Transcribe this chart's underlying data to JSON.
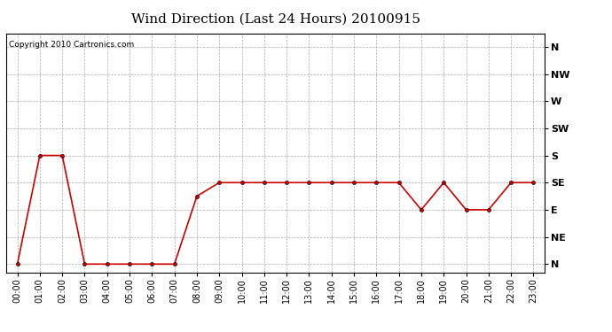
{
  "title": "Wind Direction (Last 24 Hours) 20100915",
  "copyright": "Copyright 2010 Cartronics.com",
  "x_labels": [
    "00:00",
    "01:00",
    "02:00",
    "03:00",
    "04:00",
    "05:00",
    "06:00",
    "07:00",
    "08:00",
    "09:00",
    "10:00",
    "11:00",
    "12:00",
    "13:00",
    "14:00",
    "15:00",
    "16:00",
    "17:00",
    "18:00",
    "19:00",
    "20:00",
    "21:00",
    "22:00",
    "23:00"
  ],
  "y_ticks": [
    0,
    1,
    2,
    3,
    4,
    5,
    6,
    7,
    8
  ],
  "y_labels": [
    "N",
    "NE",
    "E",
    "SE",
    "S",
    "SW",
    "W",
    "NW",
    "N"
  ],
  "data_values": [
    0,
    4,
    4,
    0,
    0,
    0,
    0,
    0,
    2.5,
    3,
    3,
    3,
    3,
    3,
    3,
    3,
    3,
    3,
    2,
    3,
    2,
    2,
    3,
    3
  ],
  "line_color": "#cc0000",
  "marker_size": 3,
  "background_color": "#ffffff",
  "grid_color": "#aaaaaa",
  "title_fontsize": 11,
  "tick_label_fontsize": 7,
  "ylabel_fontsize": 8,
  "copyright_fontsize": 6.5
}
